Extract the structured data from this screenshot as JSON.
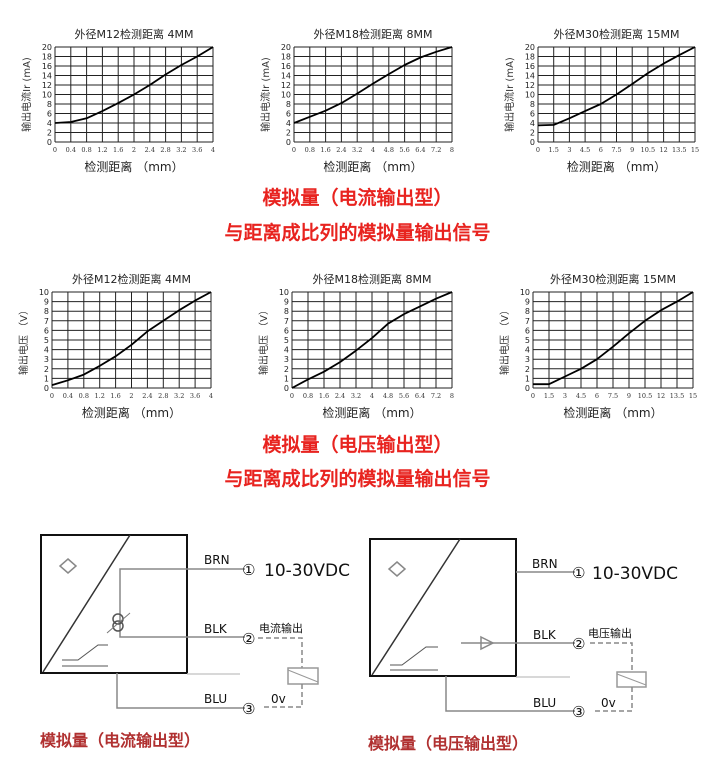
{
  "current_section": {
    "heading_1": "模拟量（电流输出型）",
    "heading_2": "与距离成比列的模拟量输出信号"
  },
  "voltage_section": {
    "heading_1": "模拟量（电压输出型）",
    "heading_2": "与距离成比列的模拟量输出信号"
  },
  "chart_data": [
    {
      "type": "line",
      "title": "外径M12检测距离 4MM",
      "xlabel": "检测距离 （mm）",
      "ylabel": "输出电流Ir (mA)",
      "xlim": [
        0,
        4
      ],
      "ylim": [
        0,
        20
      ],
      "grid": true,
      "x_ticks": [
        "0",
        "0.4",
        "0.8",
        "1.2",
        "1.6",
        "2",
        "2.4",
        "2.8",
        "3.2",
        "3.6",
        "4"
      ],
      "y_ticks": [
        "0",
        "2",
        "4",
        "6",
        "8",
        "10",
        "12",
        "14",
        "16",
        "18",
        "20"
      ],
      "x": [
        0,
        0.4,
        0.8,
        1.2,
        1.6,
        2,
        2.4,
        2.8,
        3.2,
        3.6,
        4
      ],
      "y": [
        4,
        4.2,
        5,
        6.5,
        8.2,
        10,
        12,
        14.2,
        16.2,
        18,
        20
      ]
    },
    {
      "type": "line",
      "title": "外径M18检测距离 8MM",
      "xlabel": "检测距离 （mm）",
      "ylabel": "输出电流Ir (mA)",
      "xlim": [
        0,
        8
      ],
      "ylim": [
        0,
        20
      ],
      "grid": true,
      "x_ticks": [
        "0",
        "0.8",
        "1.6",
        "2.4",
        "3.2",
        "4",
        "4.8",
        "5.6",
        "6.4",
        "7.2",
        "8"
      ],
      "y_ticks": [
        "0",
        "2",
        "4",
        "6",
        "8",
        "10",
        "12",
        "14",
        "16",
        "18",
        "20"
      ],
      "x": [
        0,
        0.8,
        1.6,
        2.4,
        3.2,
        4,
        4.8,
        5.6,
        6.4,
        7.2,
        8
      ],
      "y": [
        4,
        5.3,
        6.6,
        8.2,
        10.2,
        12.3,
        14.3,
        16.2,
        17.8,
        19,
        20
      ]
    },
    {
      "type": "line",
      "title": "外径M30检测距离 15MM",
      "xlabel": "检测距离 （mm）",
      "ylabel": "输出电流Ir (mA)",
      "xlim": [
        0,
        15
      ],
      "ylim": [
        0,
        20
      ],
      "grid": true,
      "x_ticks": [
        "0",
        "1.5",
        "3",
        "4.5",
        "6",
        "7.5",
        "9",
        "10.5",
        "12",
        "13.5",
        "15"
      ],
      "y_ticks": [
        "0",
        "2",
        "4",
        "6",
        "8",
        "10",
        "12",
        "14",
        "16",
        "18",
        "20"
      ],
      "x": [
        0,
        1.5,
        3,
        4.5,
        6,
        7.5,
        9,
        10.5,
        12,
        13.5,
        15
      ],
      "y": [
        3.5,
        3.6,
        5,
        6.5,
        8,
        10,
        12.2,
        14.5,
        16.5,
        18.3,
        20
      ]
    },
    {
      "type": "line",
      "title": "外径M12检测距离 4MM",
      "xlabel": "检测距离 （mm）",
      "ylabel": "输出电压 （V）",
      "xlim": [
        0,
        4
      ],
      "ylim": [
        0,
        10
      ],
      "grid": true,
      "x_ticks": [
        "0",
        "0.4",
        "0.8",
        "1.2",
        "1.6",
        "2",
        "2.4",
        "2.8",
        "3.2",
        "3.6",
        "4"
      ],
      "y_ticks": [
        "0",
        "1",
        "2",
        "3",
        "4",
        "5",
        "6",
        "7",
        "8",
        "9",
        "10"
      ],
      "x": [
        0,
        0.4,
        0.8,
        1.2,
        1.6,
        2,
        2.4,
        2.8,
        3.2,
        3.6,
        4
      ],
      "y": [
        0.3,
        0.8,
        1.4,
        2.3,
        3.3,
        4.5,
        5.9,
        7,
        8.1,
        9.1,
        10
      ]
    },
    {
      "type": "line",
      "title": "外径M18检测距离 8MM",
      "xlabel": "检测距离 （mm）",
      "ylabel": "输出电压 （V）",
      "xlim": [
        0,
        8
      ],
      "ylim": [
        0,
        10
      ],
      "grid": true,
      "x_ticks": [
        "0",
        "0.8",
        "1.6",
        "2.4",
        "3.2",
        "4",
        "4.8",
        "5.6",
        "6.4",
        "7.2",
        "8"
      ],
      "y_ticks": [
        "0",
        "1",
        "2",
        "3",
        "4",
        "5",
        "6",
        "7",
        "8",
        "9",
        "10"
      ],
      "x": [
        0,
        0.8,
        1.6,
        2.4,
        3.2,
        4,
        4.8,
        5.6,
        6.4,
        7.2,
        8
      ],
      "y": [
        0,
        0.9,
        1.7,
        2.7,
        3.9,
        5.2,
        6.7,
        7.7,
        8.5,
        9.3,
        10
      ]
    },
    {
      "type": "line",
      "title": "外径M30检测距离 15MM",
      "xlabel": "检测距离 （mm）",
      "ylabel": "输出电压 （V）",
      "xlim": [
        0,
        15
      ],
      "ylim": [
        0,
        10
      ],
      "grid": true,
      "x_ticks": [
        "0",
        "1.5",
        "3",
        "4.5",
        "6",
        "7.5",
        "9",
        "10.5",
        "12",
        "13.5",
        "15"
      ],
      "y_ticks": [
        "0",
        "1",
        "2",
        "3",
        "4",
        "5",
        "6",
        "7",
        "8",
        "9",
        "10"
      ],
      "x": [
        0,
        1.5,
        3,
        4.5,
        6,
        7.5,
        9,
        10.5,
        12,
        13.5,
        15
      ],
      "y": [
        0.4,
        0.4,
        1.2,
        2,
        3,
        4.3,
        5.7,
        7,
        8.1,
        9,
        10
      ]
    }
  ],
  "wiring_current": {
    "brn": "BRN",
    "blk": "BLK",
    "blu": "BLU",
    "pin1": "①",
    "pin2": "②",
    "pin3": "③",
    "supply": "10-30VDC",
    "output_label": "电流输出",
    "zero": "0v",
    "caption": "模拟量（电流输出型）"
  },
  "wiring_voltage": {
    "brn": "BRN",
    "blk": "BLK",
    "blu": "BLU",
    "pin1": "①",
    "pin2": "②",
    "pin3": "③",
    "supply": "10-30VDC",
    "output_label": "电压输出",
    "zero": "0v",
    "caption": "模拟量（电压输出型）"
  },
  "colors": {
    "heading_red": "#e8231f",
    "caption_red": "#b03030",
    "wire_gray": "#888888"
  }
}
